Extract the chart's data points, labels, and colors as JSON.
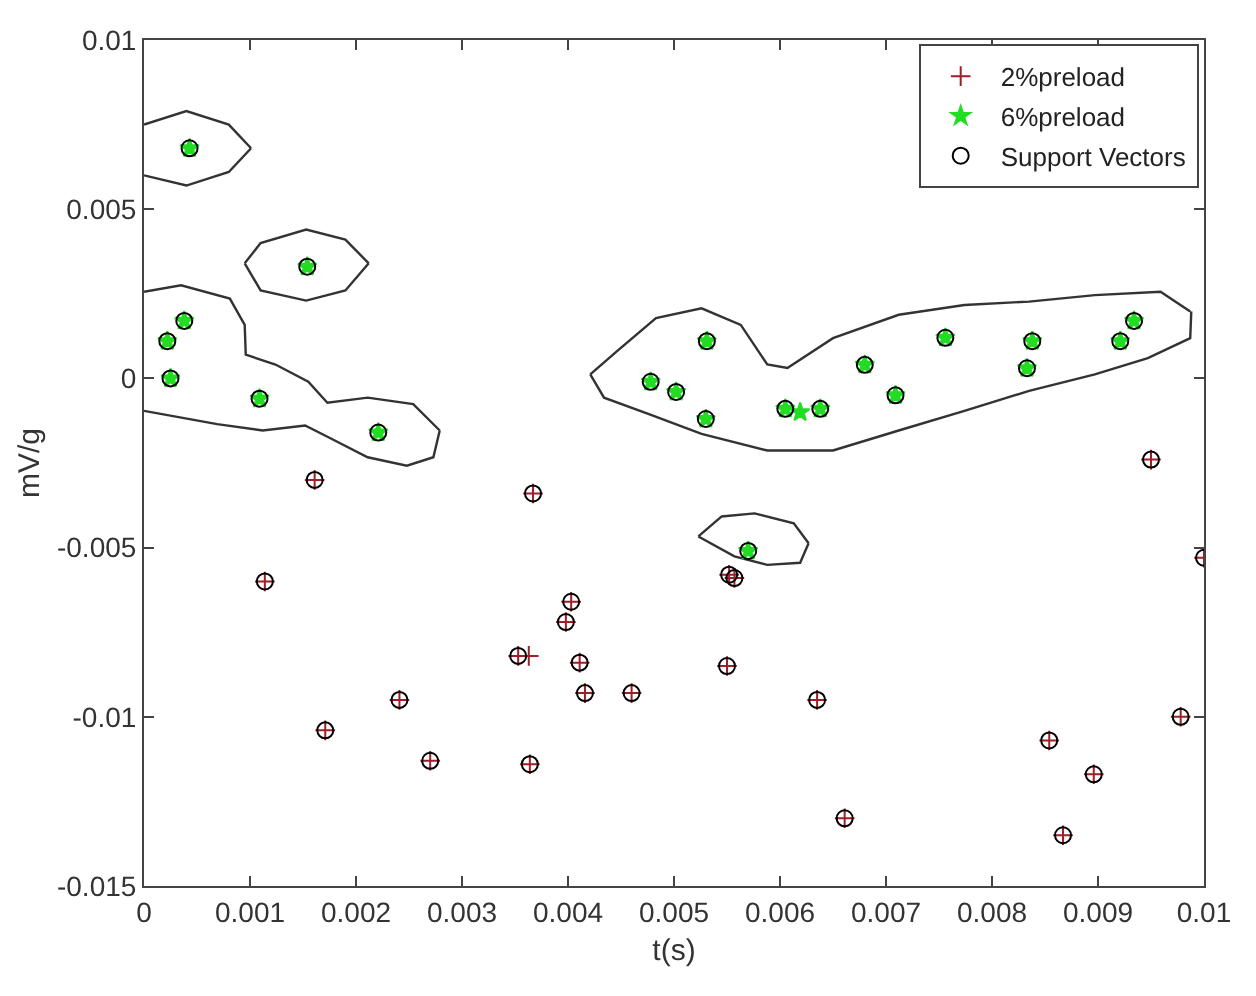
{
  "chart_data": {
    "type": "scatter",
    "xlabel": "t(s)",
    "ylabel": "mV/g",
    "xlim": [
      0,
      0.01
    ],
    "ylim": [
      -0.015,
      0.01
    ],
    "xticks": [
      0,
      0.001,
      0.002,
      0.003,
      0.004,
      0.005,
      0.006,
      0.007,
      0.008,
      0.009,
      0.01
    ],
    "yticks": [
      -0.015,
      -0.01,
      -0.005,
      0,
      0.005,
      0.01
    ],
    "legend": "top right",
    "series": [
      {
        "type": "line",
        "color": "#333333",
        "marker": "none",
        "x": [
          0,
          0.0004,
          0.0008,
          0.00101
        ],
        "values": [
          0.0075,
          0.0079,
          0.0075,
          0.0068
        ]
      },
      {
        "type": "line",
        "color": "#333333",
        "marker": "none",
        "x": [
          0,
          0.0004,
          0.0008,
          0.00101
        ],
        "values": [
          0.006,
          0.0057,
          0.0061,
          0.0068
        ]
      },
      {
        "type": "line",
        "color": "#333333",
        "marker": "none",
        "x": [
          0.00095,
          0.0011,
          0.00153,
          0.0019,
          0.00212
        ],
        "values": [
          0.0034,
          0.004,
          0.0044,
          0.0041,
          0.0034
        ]
      },
      {
        "type": "line",
        "color": "#333333",
        "marker": "none",
        "x": [
          0.00095,
          0.0011,
          0.00153,
          0.0019,
          0.00212
        ],
        "values": [
          0.0034,
          0.0026,
          0.0023,
          0.0026,
          0.0034
        ]
      },
      {
        "type": "line",
        "color": "#333333",
        "marker": "none",
        "x": [
          0,
          0.00035,
          0.00081,
          0.00095,
          0.00096,
          0.00124,
          0.00155,
          0.00173,
          0.00211,
          0.00254,
          0.00279
        ],
        "values": [
          0.00256,
          0.00275,
          0.00236,
          0.00158,
          0.0007,
          0.00041,
          -0.0001,
          -0.00072,
          -0.00057,
          -0.00076,
          -0.00154
        ]
      },
      {
        "type": "line",
        "color": "#333333",
        "marker": "none",
        "x": [
          0,
          0.00069,
          0.00112,
          0.00152,
          0.00174,
          0.00211,
          0.00248,
          0.00273,
          0.00279
        ],
        "values": [
          -0.00096,
          -0.00135,
          -0.00154,
          -0.00139,
          -0.00174,
          -0.00233,
          -0.00258,
          -0.00233,
          -0.00154
        ]
      },
      {
        "type": "line",
        "color": "#333333",
        "marker": "none",
        "x": [
          0.00421,
          0.00446,
          0.00483,
          0.00526,
          0.00563,
          0.00588,
          0.00607,
          0.0065,
          0.00712,
          0.00774,
          0.00835,
          0.00897,
          0.00959,
          0.00987
        ],
        "values": [
          0.00012,
          0.0008,
          0.00178,
          0.00207,
          0.00158,
          0.00041,
          0.00031,
          0.00119,
          0.00188,
          0.00217,
          0.00227,
          0.00246,
          0.00256,
          0.00198
        ]
      },
      {
        "type": "line",
        "color": "#333333",
        "marker": "none",
        "x": [
          0.00421,
          0.00434,
          0.00477,
          0.00526,
          0.00588,
          0.0065,
          0.00712,
          0.00774,
          0.00835,
          0.00897,
          0.00947,
          0.00987,
          0.00988
        ],
        "values": [
          0.00012,
          -0.00057,
          -0.00106,
          -0.00164,
          -0.00213,
          -0.00213,
          -0.00154,
          -0.00096,
          -0.00037,
          0.00012,
          0.0006,
          0.00119,
          0.00198
        ]
      },
      {
        "type": "line",
        "color": "#333333",
        "marker": "none",
        "x": [
          0.00523,
          0.00545,
          0.00576,
          0.00613,
          0.00627
        ],
        "values": [
          -0.00467,
          -0.00408,
          -0.00399,
          -0.00428,
          -0.00487
        ]
      },
      {
        "type": "line",
        "color": "#333333",
        "marker": "none",
        "x": [
          0.00523,
          0.00557,
          0.00588,
          0.00619,
          0.00627
        ],
        "values": [
          -0.00467,
          -0.00526,
          -0.00551,
          -0.00545,
          -0.00487
        ]
      },
      {
        "name": "2%preload",
        "color": "#a01e28",
        "marker": "cross",
        "x": [
          0.00161,
          0.00114,
          0.00367,
          0.00403,
          0.00398,
          0.00353,
          0.00363,
          0.00411,
          0.00416,
          0.0046,
          0.00241,
          0.00171,
          0.0027,
          0.00364,
          0.0095,
          0.00552,
          0.00557,
          0.01,
          0.0055,
          0.00635,
          0.00978,
          0.00854,
          0.00896,
          0.00661,
          0.00867
        ],
        "values": [
          -0.003,
          -0.006,
          -0.0034,
          -0.0066,
          -0.0072,
          -0.0082,
          -0.0082,
          -0.0084,
          -0.0093,
          -0.0093,
          -0.0095,
          -0.0104,
          -0.0113,
          -0.0114,
          -0.0024,
          -0.0058,
          -0.0059,
          -0.0053,
          -0.0085,
          -0.0095,
          -0.01,
          -0.0107,
          -0.0117,
          -0.013,
          -0.0135
        ]
      },
      {
        "name": "6%preload",
        "color": "#22dd22",
        "marker": "star",
        "x": [
          0.00043,
          0.00154,
          0.00038,
          0.00022,
          0.00025,
          0.00109,
          0.00221,
          0.00478,
          0.00502,
          0.00531,
          0.0053,
          0.00605,
          0.00619,
          0.00638,
          0.0068,
          0.00709,
          0.00756,
          0.00833,
          0.00838,
          0.00921,
          0.00934,
          0.0057
        ],
        "values": [
          0.0068,
          0.0033,
          0.0017,
          0.0011,
          0.0,
          -0.0006,
          -0.0016,
          -0.0001,
          -0.0004,
          0.0011,
          -0.0012,
          -0.0009,
          -0.001,
          -0.0009,
          0.0004,
          -0.0005,
          0.0012,
          0.0003,
          0.0011,
          0.0011,
          0.0017,
          -0.0051
        ]
      },
      {
        "name": "Support Vectors",
        "color": "#000000",
        "marker": "circle",
        "x": [
          0.00161,
          0.00114,
          0.00367,
          0.00403,
          0.00398,
          0.00353,
          0.00411,
          0.00416,
          0.0046,
          0.00241,
          0.00171,
          0.0027,
          0.00364,
          0.0095,
          0.00552,
          0.00557,
          0.01,
          0.0055,
          0.00635,
          0.00978,
          0.00854,
          0.00896,
          0.00661,
          0.00867,
          0.00043,
          0.00154,
          0.00038,
          0.00022,
          0.00025,
          0.00109,
          0.00221,
          0.00478,
          0.00502,
          0.00531,
          0.0053,
          0.00605,
          0.00638,
          0.0068,
          0.00709,
          0.00756,
          0.00833,
          0.00838,
          0.00921,
          0.00934,
          0.0057
        ],
        "values": [
          -0.003,
          -0.006,
          -0.0034,
          -0.0066,
          -0.0072,
          -0.0082,
          -0.0084,
          -0.0093,
          -0.0093,
          -0.0095,
          -0.0104,
          -0.0113,
          -0.0114,
          -0.0024,
          -0.0058,
          -0.0059,
          -0.0053,
          -0.0085,
          -0.0095,
          -0.01,
          -0.0107,
          -0.0117,
          -0.013,
          -0.0135,
          0.0068,
          0.0033,
          0.0017,
          0.0011,
          0.0,
          -0.0006,
          -0.0016,
          -0.0001,
          -0.0004,
          0.0011,
          -0.0012,
          -0.0009,
          -0.0009,
          0.0004,
          -0.0005,
          0.0012,
          0.0003,
          0.0011,
          0.0011,
          0.0017,
          -0.0051
        ]
      }
    ]
  }
}
